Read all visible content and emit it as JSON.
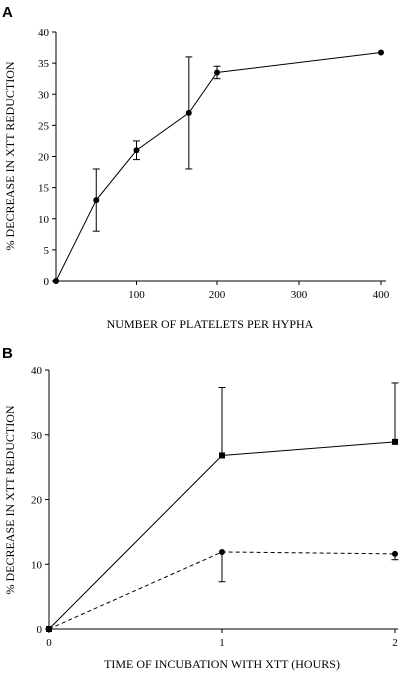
{
  "chart_data": [
    {
      "panel": "A",
      "type": "line",
      "xlabel": "NUMBER OF PLATELETS PER HYPHA",
      "ylabel": "% DECREASE IN XTT REDUCTION",
      "ylim": [
        0,
        40
      ],
      "y_ticks": [
        0,
        5,
        10,
        15,
        20,
        25,
        30,
        35,
        40
      ],
      "x_ticks": [
        100,
        200,
        300,
        400
      ],
      "grid": false,
      "series": [
        {
          "marker": "circle",
          "line_style": "solid",
          "points": [
            {
              "x": 0,
              "y": 0
            },
            {
              "x": 50,
              "y": 13,
              "err": 5
            },
            {
              "x": 100,
              "y": 21,
              "err": 1.5
            },
            {
              "x": 165,
              "y": 27,
              "err": 9
            },
            {
              "x": 200,
              "y": 33.5,
              "err": 1
            },
            {
              "x": 400,
              "y": 36.7
            }
          ]
        }
      ]
    },
    {
      "panel": "B",
      "type": "line",
      "xlabel": "TIME OF INCUBATION WITH XTT (HOURS)",
      "ylabel": "% DECREASE IN XTT REDUCTION",
      "ylim": [
        0,
        40
      ],
      "y_ticks": [
        0,
        10,
        20,
        30,
        40
      ],
      "x_ticks": [
        0,
        1,
        2
      ],
      "grid": false,
      "series": [
        {
          "marker": "square",
          "line_style": "solid",
          "points": [
            {
              "x": 0,
              "y": 0
            },
            {
              "x": 1,
              "y": 26.8,
              "err_upper": 10.5
            },
            {
              "x": 2,
              "y": 28.9,
              "err_upper": 9.1
            }
          ]
        },
        {
          "marker": "circle",
          "line_style": "dashed",
          "points": [
            {
              "x": 0,
              "y": 0
            },
            {
              "x": 1,
              "y": 11.9,
              "err_lower": 4.6
            },
            {
              "x": 2,
              "y": 11.6,
              "err_lower": 0.9
            }
          ]
        }
      ]
    }
  ]
}
